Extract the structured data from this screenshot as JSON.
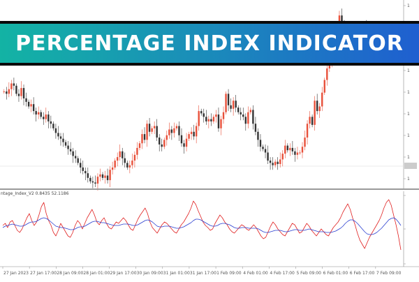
{
  "banner": {
    "title": "PERCENTAGE INDEX INDICATOR"
  },
  "indicator": {
    "label": "ntage_Index_V2 0.8435 52.1186"
  },
  "colors": {
    "bull": "#e8503a",
    "bear": "#333333",
    "indicator_fast": "#e02020",
    "indicator_slow": "#2a3fd0",
    "grid": "#d8d8d8",
    "banner_start": "#13b3a4",
    "banner_end": "#1f5fd0"
  },
  "chart_data": [
    {
      "type": "candlestick",
      "title": "",
      "y_axis_side": "right",
      "y_tick_labels": [
        "1",
        "1",
        "1",
        "1",
        "1",
        "1",
        "1",
        "1",
        "1"
      ],
      "closes": [
        178,
        176,
        180,
        185,
        183,
        176,
        174,
        181,
        172,
        169,
        165,
        167,
        161,
        158,
        160,
        156,
        154,
        158,
        152,
        150,
        146,
        142,
        139,
        137,
        134,
        131,
        128,
        126,
        122,
        120,
        116,
        112,
        109,
        107,
        103,
        100,
        99,
        98,
        104,
        106,
        103,
        105,
        101,
        110,
        112,
        118,
        121,
        126,
        120,
        116,
        112,
        114,
        118,
        123,
        129,
        133,
        141,
        136,
        150,
        143,
        146,
        148,
        138,
        132,
        130,
        136,
        140,
        145,
        142,
        146,
        148,
        140,
        133,
        130,
        137,
        141,
        143,
        139,
        148,
        161,
        159,
        156,
        152,
        154,
        152,
        156,
        158,
        146,
        154,
        160,
        176,
        166,
        163,
        170,
        164,
        160,
        158,
        156,
        150,
        160,
        162,
        150,
        143,
        136,
        130,
        128,
        125,
        118,
        116,
        114,
        117,
        115,
        119,
        124,
        131,
        127,
        129,
        126,
        123,
        125,
        125,
        130,
        138,
        150,
        156,
        149,
        170,
        161,
        165,
        177,
        188,
        198,
        205,
        222,
        230,
        237,
        244,
        237,
        230,
        225,
        232,
        221,
        228,
        227,
        225,
        219,
        234,
        226,
        222,
        220,
        218,
        222,
        216,
        220,
        215,
        217,
        213,
        221,
        226,
        228,
        230,
        235
      ]
    },
    {
      "type": "line",
      "title": "",
      "x_tick_labels": [
        "27 Jan 2023",
        "27 Jan 17:00",
        "28 Jan 09:00",
        "28 Jan 01:00",
        "29 Jan 17:00",
        "30 Jan 09:00",
        "31 Jan 01:00",
        "31 Jan 17:00",
        "1 Feb 09:00",
        "4 Feb 01:00",
        "4 Feb 17:00",
        "5 Feb 09:00",
        "6 Feb 01:00",
        "6 Feb 17:00",
        "7 Feb 09:00"
      ],
      "series": [
        {
          "color": "#e02020",
          "values": [
            55,
            58,
            52,
            60,
            62,
            55,
            48,
            45,
            50,
            58,
            66,
            72,
            62,
            55,
            60,
            70,
            82,
            88,
            72,
            62,
            55,
            45,
            40,
            48,
            58,
            52,
            46,
            40,
            38,
            45,
            55,
            62,
            58,
            50,
            58,
            66,
            72,
            78,
            70,
            60,
            56,
            62,
            66,
            58,
            52,
            50,
            55,
            60,
            58,
            62,
            66,
            62,
            56,
            50,
            48,
            56,
            64,
            70,
            75,
            80,
            72,
            60,
            52,
            48,
            44,
            50,
            56,
            60,
            58,
            54,
            50,
            46,
            44,
            50,
            56,
            60,
            66,
            72,
            80,
            90,
            85,
            76,
            68,
            60,
            55,
            52,
            48,
            50,
            58,
            64,
            70,
            66,
            60,
            56,
            50,
            46,
            44,
            48,
            52,
            56,
            54,
            50,
            48,
            52,
            56,
            52,
            46,
            40,
            36,
            38,
            46,
            54,
            60,
            56,
            50,
            46,
            42,
            40,
            46,
            52,
            58,
            56,
            50,
            44,
            46,
            52,
            58,
            54,
            48,
            44,
            40,
            45,
            50,
            46,
            42,
            40,
            46,
            52,
            56,
            60,
            66,
            74,
            80,
            86,
            78,
            66,
            56,
            44,
            34,
            28,
            22,
            30,
            38,
            44,
            50,
            56,
            62,
            70,
            80,
            88,
            92,
            84,
            70,
            56,
            40,
            20
          ]
        },
        {
          "color": "#2a3fd0",
          "values": [
            52,
            54,
            55,
            56,
            57,
            56,
            55,
            54,
            54,
            55,
            57,
            59,
            60,
            60,
            61,
            63,
            65,
            66,
            65,
            63,
            60,
            57,
            54,
            53,
            52,
            52,
            51,
            50,
            49,
            49,
            50,
            52,
            53,
            53,
            54,
            56,
            58,
            60,
            61,
            61,
            60,
            59,
            59,
            58,
            57,
            56,
            55,
            55,
            55,
            56,
            57,
            57,
            57,
            56,
            55,
            55,
            56,
            58,
            60,
            62,
            63,
            62,
            60,
            57,
            54,
            53,
            53,
            54,
            54,
            54,
            53,
            52,
            51,
            51,
            52,
            53,
            55,
            57,
            59,
            62,
            64,
            64,
            63,
            61,
            59,
            57,
            55,
            54,
            54,
            55,
            57,
            58,
            58,
            57,
            56,
            54,
            52,
            51,
            51,
            52,
            52,
            52,
            51,
            51,
            51,
            51,
            50,
            48,
            46,
            45,
            45,
            46,
            47,
            48,
            48,
            48,
            47,
            46,
            46,
            47,
            48,
            49,
            49,
            48,
            48,
            48,
            49,
            50,
            49,
            48,
            47,
            46,
            46,
            46,
            45,
            45,
            45,
            46,
            47,
            49,
            51,
            54,
            58,
            61,
            63,
            63,
            61,
            58,
            54,
            50,
            46,
            43,
            42,
            42,
            43,
            45,
            48,
            51,
            55,
            59,
            63,
            65,
            66,
            64,
            60,
            55
          ]
        }
      ]
    }
  ]
}
